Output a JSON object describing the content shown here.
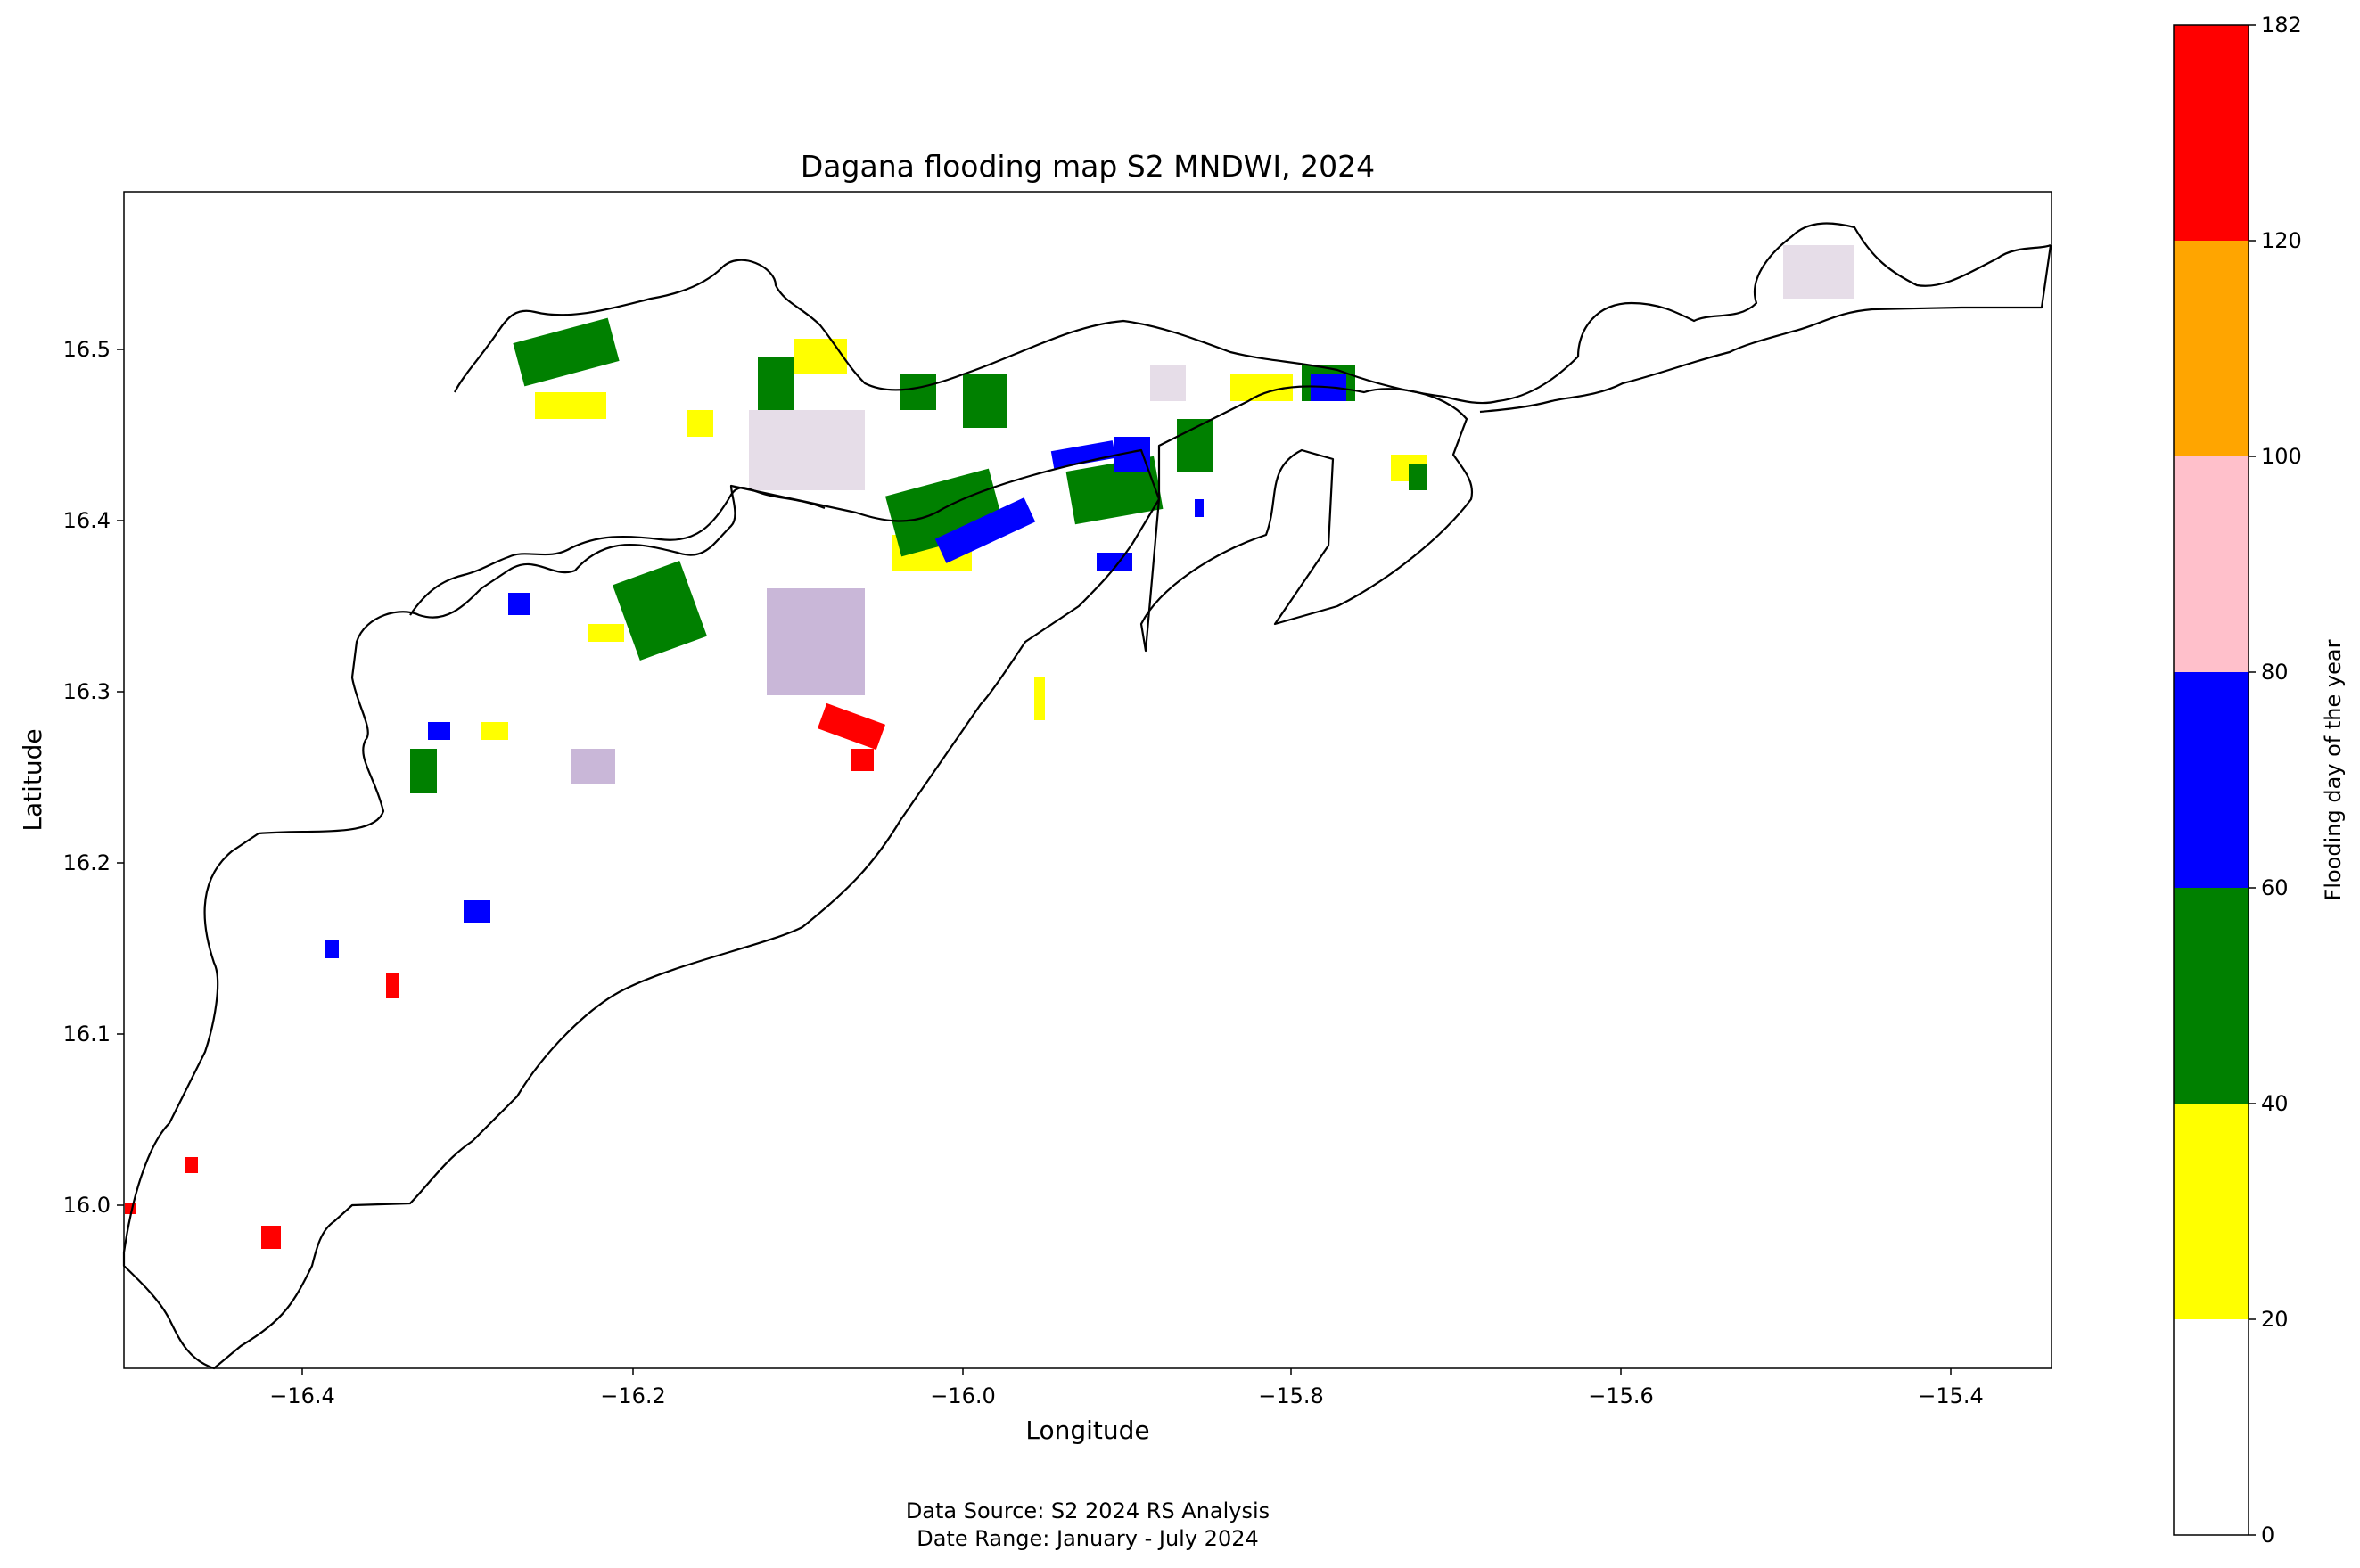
{
  "map": {
    "title": "Dagana flooding map S2 MNDWI, 2024",
    "xlabel": "Longitude",
    "ylabel": "Latitude",
    "x_ticks": [
      "−16.4",
      "−16.2",
      "−16.0",
      "−15.8",
      "−15.6",
      "−15.4"
    ],
    "y_ticks": [
      "16.5",
      "16.4",
      "16.3",
      "16.2",
      "16.1",
      "16.0"
    ]
  },
  "colorbar": {
    "label": "Flooding day of the year",
    "ticks": [
      "0",
      "20",
      "40",
      "60",
      "80",
      "100",
      "120",
      "182"
    ],
    "classes": [
      {
        "from": 0,
        "to": 20,
        "color": "#ffffff"
      },
      {
        "from": 20,
        "to": 40,
        "color": "#ffff00"
      },
      {
        "from": 40,
        "to": 60,
        "color": "#008000"
      },
      {
        "from": 60,
        "to": 80,
        "color": "#0000ff"
      },
      {
        "from": 80,
        "to": 100,
        "color": "#ffc0cb"
      },
      {
        "from": 100,
        "to": 120,
        "color": "#ffa500"
      },
      {
        "from": 120,
        "to": 182,
        "color": "#ff0000"
      }
    ]
  },
  "footer": {
    "source": "Data Source: S2 2024 RS Analysis",
    "range": "Date Range: January - July 2024"
  }
}
